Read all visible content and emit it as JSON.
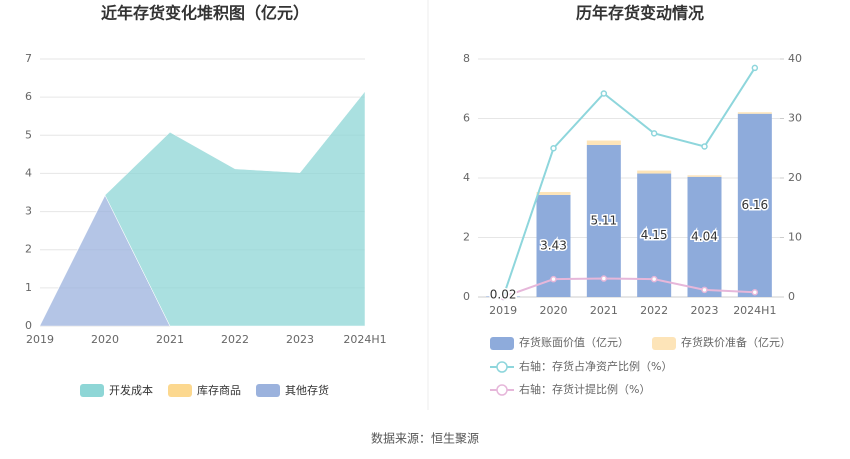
{
  "chart_data": [
    {
      "type": "stacked_area",
      "title": "近年存货变化堆积图（亿元）",
      "categories": [
        "2019",
        "2020",
        "2021",
        "2022",
        "2023",
        "2024H1"
      ],
      "series": [
        {
          "name": "其他存货",
          "color": "#9bb2dd",
          "values": [
            0.02,
            3.43,
            0,
            0,
            0,
            0
          ]
        },
        {
          "name": "库存商品",
          "color": "#fcd88f",
          "values": [
            0,
            0,
            0,
            0,
            0,
            0
          ]
        },
        {
          "name": "开发成本",
          "color": "#8ed6d6",
          "values": [
            0,
            0,
            5.08,
            4.12,
            4.02,
            6.15
          ]
        }
      ],
      "legend_order": [
        2,
        1,
        0
      ],
      "ylim": [
        0,
        7
      ],
      "yticks": [
        0,
        1,
        2,
        3,
        4,
        5,
        6,
        7
      ],
      "grid": true
    },
    {
      "type": "bar_line",
      "title": "历年存货变动情况",
      "categories": [
        "2019",
        "2020",
        "2021",
        "2022",
        "2023",
        "2024H1"
      ],
      "series": [
        {
          "name": "存货账面价值（亿元）",
          "color": "#8eabdb",
          "values": [
            0.02,
            3.43,
            5.11,
            4.15,
            4.04,
            6.16
          ]
        },
        {
          "name": "存货跌价准备（亿元）",
          "color": "#fde4b8",
          "values": [
            0,
            0.1,
            0.15,
            0.1,
            0.05,
            0.05
          ]
        },
        {
          "name": "右轴：存货占净资产比例（%）",
          "color": "#8ed6dc",
          "axis": "y2",
          "values": [
            0,
            25,
            34.2,
            27.5,
            25.3,
            38.5
          ]
        },
        {
          "name": "右轴：存货计提比例（%）",
          "color": "#e6b7da",
          "axis": "y2",
          "values": [
            0,
            3,
            3.1,
            3,
            1.2,
            0.8
          ]
        }
      ],
      "ylim": [
        0,
        8
      ],
      "yticks": [
        0,
        2,
        4,
        6,
        8
      ],
      "y2lim": [
        0,
        40
      ],
      "y2ticks": [
        0,
        10,
        20,
        30,
        40
      ],
      "grid": true
    }
  ],
  "source": "数据来源：恒生聚源"
}
